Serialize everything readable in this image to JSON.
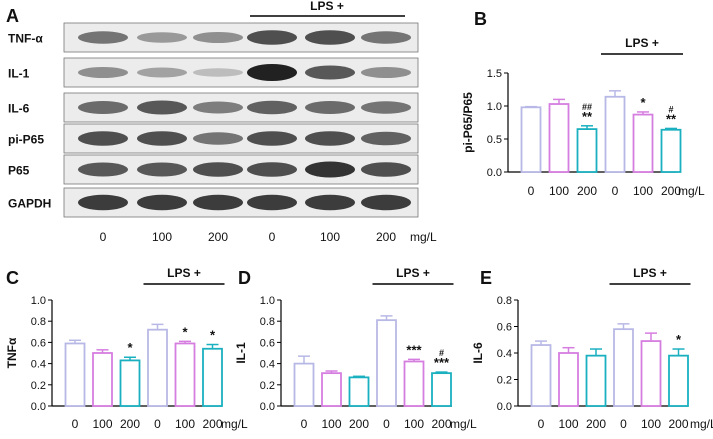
{
  "panel_labels": [
    "A",
    "B",
    "C",
    "D",
    "E"
  ],
  "blot": {
    "lps_label": "LPS +",
    "rows": [
      {
        "label": "TNF-α",
        "intensity": [
          0.55,
          0.35,
          0.4,
          0.75,
          0.75,
          0.55
        ]
      },
      {
        "label": "IL-1",
        "intensity": [
          0.4,
          0.3,
          0.15,
          1.0,
          0.7,
          0.4
        ]
      },
      {
        "label": "IL-6",
        "intensity": [
          0.6,
          0.7,
          0.5,
          0.65,
          0.6,
          0.55
        ]
      },
      {
        "label": "pi-P65",
        "intensity": [
          0.75,
          0.75,
          0.55,
          0.75,
          0.75,
          0.65
        ]
      },
      {
        "label": "P65",
        "intensity": [
          0.7,
          0.7,
          0.75,
          0.75,
          0.9,
          0.75
        ]
      },
      {
        "label": "GAPDH",
        "intensity": [
          0.85,
          0.85,
          0.85,
          0.85,
          0.85,
          0.85
        ]
      }
    ],
    "lanes": [
      "0",
      "100",
      "200",
      "0",
      "100",
      "200"
    ],
    "unit": "mg/L"
  },
  "colors": [
    "#b8b8e6",
    "#d67ee0",
    "#1ab0c0",
    "#b8b8e6",
    "#d67ee0",
    "#1ab0c0"
  ],
  "chart_data": [
    {
      "panel": "B",
      "type": "bar",
      "ylabel": "pi-P65/P65",
      "ylim": [
        0,
        1.5
      ],
      "yticks": [
        "0.0",
        "0.5",
        "1.0",
        "1.5"
      ],
      "categories": [
        "0",
        "100",
        "200",
        "0",
        "100",
        "200"
      ],
      "unit": "mg/L",
      "lps_label": "LPS +",
      "values": [
        0.98,
        1.03,
        0.65,
        1.14,
        0.87,
        0.64
      ],
      "errors": [
        0.01,
        0.07,
        0.05,
        0.09,
        0.04,
        0.02
      ],
      "annotations": [
        [],
        [],
        [
          "##",
          "**"
        ],
        [],
        [
          "*"
        ],
        [
          "#",
          "**"
        ]
      ]
    },
    {
      "panel": "C",
      "type": "bar",
      "ylabel": "TNFα",
      "ylim": [
        0,
        1.0
      ],
      "yticks": [
        "0.0",
        "0.2",
        "0.4",
        "0.6",
        "0.8",
        "1.0"
      ],
      "categories": [
        "0",
        "100",
        "200",
        "0",
        "100",
        "200"
      ],
      "unit": "mg/L",
      "lps_label": "LPS +",
      "values": [
        0.59,
        0.5,
        0.43,
        0.72,
        0.59,
        0.54
      ],
      "errors": [
        0.03,
        0.03,
        0.03,
        0.05,
        0.02,
        0.04
      ],
      "annotations": [
        [],
        [],
        [
          "*"
        ],
        [],
        [
          "*"
        ],
        [
          "*"
        ]
      ]
    },
    {
      "panel": "D",
      "type": "bar",
      "ylabel": "IL-1",
      "ylim": [
        0,
        1.0
      ],
      "yticks": [
        "0.0",
        "0.2",
        "0.4",
        "0.6",
        "0.8",
        "1.0"
      ],
      "categories": [
        "0",
        "100",
        "200",
        "0",
        "100",
        "200"
      ],
      "unit": "mg/L",
      "lps_label": "LPS +",
      "values": [
        0.4,
        0.31,
        0.27,
        0.81,
        0.42,
        0.31
      ],
      "errors": [
        0.07,
        0.02,
        0.01,
        0.04,
        0.02,
        0.01
      ],
      "annotations": [
        [],
        [],
        [],
        [],
        [
          "***"
        ],
        [
          "#",
          "***"
        ]
      ]
    },
    {
      "panel": "E",
      "type": "bar",
      "ylabel": "IL-6",
      "ylim": [
        0,
        0.8
      ],
      "yticks": [
        "0.0",
        "0.2",
        "0.4",
        "0.6",
        "0.8"
      ],
      "categories": [
        "0",
        "100",
        "200",
        "0",
        "100",
        "200"
      ],
      "unit": "mg/L",
      "lps_label": "LPS +",
      "values": [
        0.46,
        0.4,
        0.38,
        0.58,
        0.49,
        0.38
      ],
      "errors": [
        0.03,
        0.04,
        0.05,
        0.04,
        0.06,
        0.05
      ],
      "annotations": [
        [],
        [],
        [],
        [],
        [],
        [
          "*"
        ]
      ]
    }
  ]
}
